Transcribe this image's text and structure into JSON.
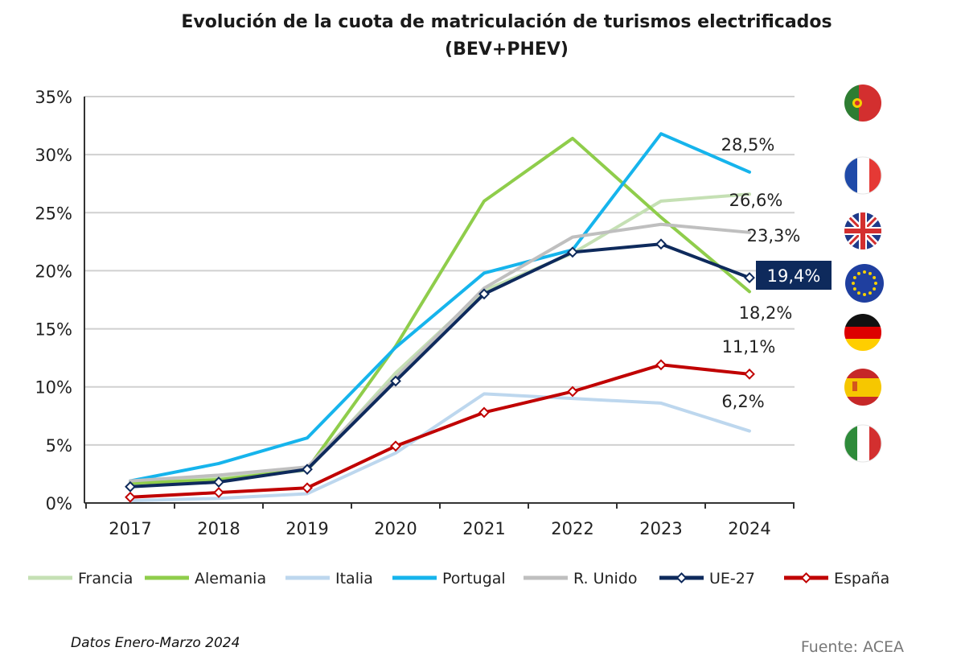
{
  "chart_data": {
    "type": "line",
    "title": "Evolución de la cuota de matriculación de turismos electrificados",
    "subtitle": "(BEV+PHEV)",
    "x": [
      "2017",
      "2018",
      "2019",
      "2020",
      "2021",
      "2022",
      "2023",
      "2024"
    ],
    "ylim": [
      0,
      35
    ],
    "yticks": [
      0,
      5,
      10,
      15,
      20,
      25,
      30,
      35
    ],
    "ytick_labels": [
      "0%",
      "5%",
      "10%",
      "15%",
      "20%",
      "25%",
      "30%",
      "35%"
    ],
    "grid": true,
    "legend_position": "bottom",
    "series": [
      {
        "name": "Francia",
        "color": "#c5e0b4",
        "marker": false,
        "values": [
          1.8,
          2.2,
          2.8,
          11.2,
          18.3,
          21.5,
          26.0,
          26.6
        ],
        "end_label": "26,6%"
      },
      {
        "name": "Alemania",
        "color": "#8fcd4b",
        "marker": false,
        "values": [
          1.7,
          2.0,
          2.9,
          13.5,
          26.0,
          31.4,
          24.6,
          18.2
        ],
        "end_label": "18,2%"
      },
      {
        "name": "Italia",
        "color": "#bdd7ee",
        "marker": false,
        "values": [
          0.2,
          0.4,
          0.8,
          4.3,
          9.4,
          9.0,
          8.6,
          6.2
        ],
        "end_label": "6,2%"
      },
      {
        "name": "Portugal",
        "color": "#16b4ec",
        "marker": false,
        "values": [
          1.9,
          3.4,
          5.6,
          13.4,
          19.8,
          21.8,
          31.8,
          28.5
        ],
        "end_label": "28,5%"
      },
      {
        "name": "R. Unido",
        "color": "#bfbfbf",
        "marker": false,
        "values": [
          1.9,
          2.4,
          3.1,
          10.8,
          18.5,
          22.9,
          24.0,
          23.3
        ],
        "end_label": "23,3%"
      },
      {
        "name": "UE-27",
        "color": "#0e2a5c",
        "marker": true,
        "values": [
          1.4,
          1.8,
          2.9,
          10.5,
          18.0,
          21.6,
          22.3,
          19.4
        ],
        "end_label": "19,4%"
      },
      {
        "name": "España",
        "color": "#c00000",
        "marker": true,
        "values": [
          0.5,
          0.9,
          1.3,
          4.9,
          7.8,
          9.6,
          11.9,
          11.1
        ],
        "end_label": "11,1%"
      }
    ],
    "annotations": [
      "Datos Enero-Marzo 2024",
      "Fuente:  ACEA"
    ]
  },
  "flags": [
    {
      "name": "portugal-flag-icon",
      "colors": [
        "#2e7d32",
        "#d32f2f"
      ]
    },
    {
      "name": "france-flag-icon",
      "colors": [
        "#1f4aa8",
        "#ffffff",
        "#e53935"
      ]
    },
    {
      "name": "uk-flag-icon",
      "colors": [
        "#1e3a8a",
        "#ffffff",
        "#d32f2f"
      ]
    },
    {
      "name": "eu-flag-icon",
      "colors": [
        "#1f3f9f",
        "#f5d000"
      ]
    },
    {
      "name": "germany-flag-icon",
      "colors": [
        "#111111",
        "#dd0000",
        "#ffce00"
      ]
    },
    {
      "name": "spain-flag-icon",
      "colors": [
        "#c62828",
        "#f6c700"
      ]
    },
    {
      "name": "italy-flag-icon",
      "colors": [
        "#2e8b3a",
        "#ffffff",
        "#d32f2f"
      ]
    }
  ]
}
